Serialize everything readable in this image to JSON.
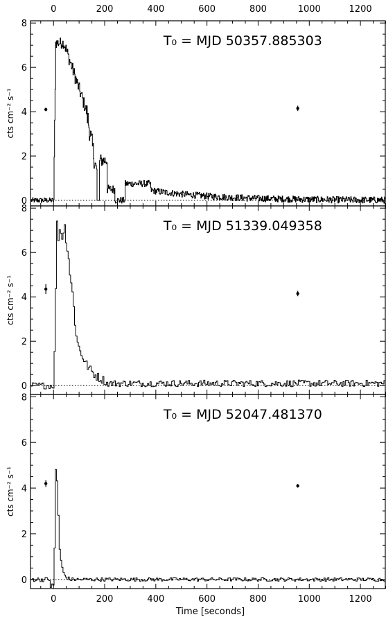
{
  "figure": {
    "xlabel": "Time [seconds]",
    "ylabel": "cts cm⁻² s⁻¹",
    "xlim": [
      -90,
      1300
    ],
    "xticks": [
      0,
      200,
      400,
      600,
      800,
      1000,
      1200
    ],
    "yticks": [
      0,
      2,
      4,
      6,
      8
    ]
  },
  "chart_data": [
    {
      "type": "line",
      "title": "T₀ = MJD 50357.885303",
      "ylabel": "cts cm⁻² s⁻¹",
      "ylim": [
        -0.25,
        8.1
      ],
      "dotted_zero_line": true,
      "step": 2,
      "profile": "burst1",
      "error_points": [
        {
          "x": -30,
          "y": 4.1,
          "yerr": 0.08
        },
        {
          "x": 955,
          "y": 4.15,
          "yerr": 0.12
        }
      ],
      "series": [
        {
          "values_description_free": true
        }
      ]
    },
    {
      "type": "line",
      "title": "T₀ = MJD 51339.049358",
      "ylabel": "cts cm⁻² s⁻¹",
      "ylim": [
        -0.4,
        8.1
      ],
      "dotted_zero_line": true,
      "step": 5,
      "profile": "burst2",
      "error_points": [
        {
          "x": -30,
          "y": 4.35,
          "yerr": 0.22
        },
        {
          "x": 955,
          "y": 4.15,
          "yerr": 0.12
        }
      ]
    },
    {
      "type": "line",
      "title": "T₀ = MJD 52047.481370",
      "ylabel": "cts cm⁻² s⁻¹",
      "ylim": [
        -0.4,
        8.1
      ],
      "dotted_zero_line": true,
      "step": 5,
      "profile": "burst3",
      "error_points": [
        {
          "x": -30,
          "y": 4.2,
          "yerr": 0.15
        },
        {
          "x": 955,
          "y": 4.1,
          "yerr": 0.08
        }
      ]
    }
  ]
}
